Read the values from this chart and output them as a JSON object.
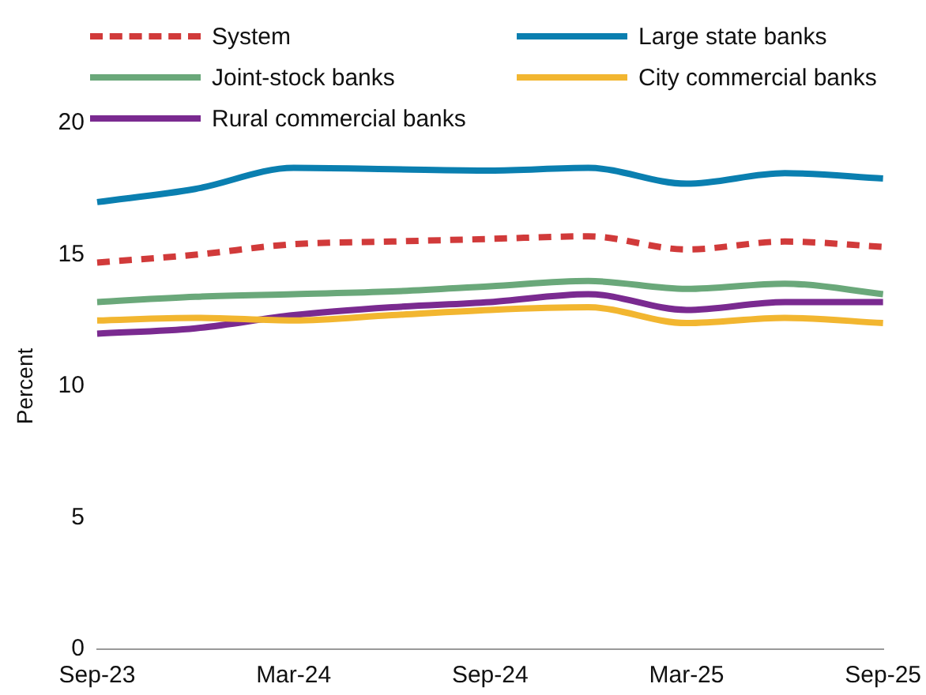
{
  "chart_data": {
    "type": "line",
    "ylabel": "Percent",
    "categories": [
      "Sep-23",
      null,
      "Mar-24",
      null,
      "Sep-24",
      null,
      "Mar-25",
      null,
      "Sep-25"
    ],
    "ylim": [
      0,
      20
    ],
    "yticks": [
      0,
      5,
      10,
      15,
      20
    ],
    "grid": false,
    "legend": "top",
    "marker": "none",
    "series": [
      {
        "name": "System",
        "color": "#d13a3a",
        "line_style": "dashed",
        "values": [
          14.7,
          15.0,
          15.4,
          15.5,
          15.6,
          15.7,
          15.2,
          15.5,
          15.3
        ]
      },
      {
        "name": "Large state banks",
        "color": "#0a7fb0",
        "line_style": "solid",
        "values": [
          17.0,
          17.5,
          18.3,
          18.25,
          18.2,
          18.3,
          17.7,
          18.1,
          17.9
        ]
      },
      {
        "name": "Joint-stock banks",
        "color": "#6aa87a",
        "line_style": "solid",
        "values": [
          13.2,
          13.4,
          13.5,
          13.6,
          13.8,
          14.0,
          13.7,
          13.9,
          13.5
        ]
      },
      {
        "name": "City commercial banks",
        "color": "#f2b630",
        "line_style": "solid",
        "values": [
          12.5,
          12.6,
          12.5,
          12.7,
          12.9,
          13.0,
          12.4,
          12.6,
          12.4
        ]
      },
      {
        "name": "Rural commercial banks",
        "color": "#7a2a90",
        "line_style": "solid",
        "values": [
          12.0,
          12.2,
          12.7,
          13.0,
          13.2,
          13.5,
          12.9,
          13.2,
          13.2
        ]
      }
    ]
  }
}
